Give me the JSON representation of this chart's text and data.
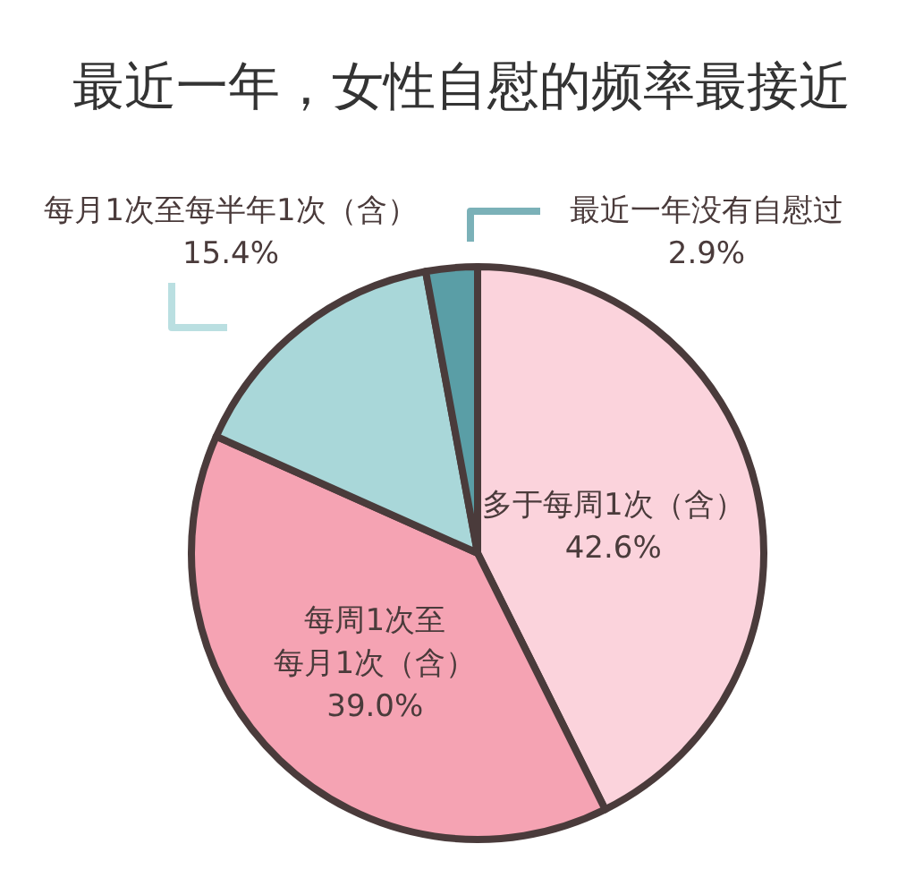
{
  "chart_data": {
    "type": "pie",
    "title": "最近一年，女性自慰的频率最接近",
    "categories": [
      "多于每周1次（含）",
      "每周1次至每月1次（含）",
      "每月1次至每半年1次（含）",
      "最近一年没有自慰过"
    ],
    "values": [
      42.6,
      39.0,
      15.4,
      2.9
    ],
    "value_labels": [
      "42.6%",
      "39.0%",
      "15.4%",
      "2.9%"
    ],
    "colors": [
      "#fbd3dc",
      "#f5a3b3",
      "#a9d7d9",
      "#5a9ea6"
    ]
  }
}
